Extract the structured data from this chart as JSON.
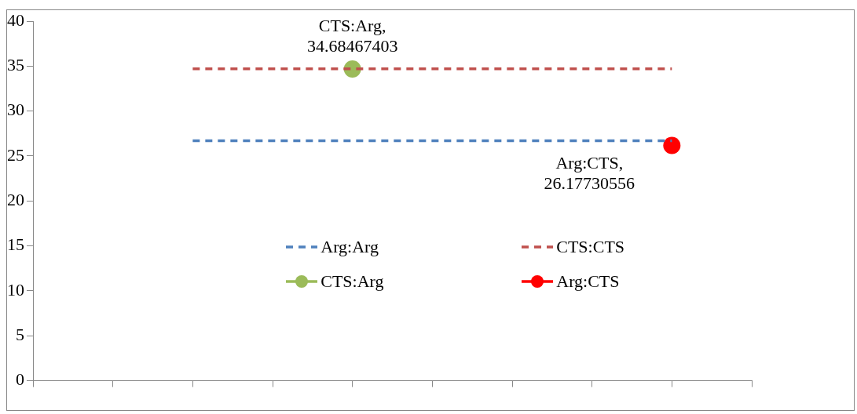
{
  "chart_data": {
    "type": "line",
    "categories": [
      null,
      null,
      null,
      null,
      null,
      null,
      null,
      null,
      null,
      null
    ],
    "series": [
      {
        "name": "Arg:Arg",
        "color": "#4f81bd",
        "line_style": "dashed",
        "marker": "none",
        "values": [
          null,
          null,
          26.7,
          26.7,
          26.7,
          26.7,
          26.7,
          26.7,
          26.7,
          null
        ]
      },
      {
        "name": "CTS:CTS",
        "color": "#c0504d",
        "line_style": "dashed",
        "marker": "none",
        "values": [
          null,
          null,
          34.7,
          34.7,
          34.7,
          34.7,
          34.7,
          34.7,
          34.7,
          null
        ]
      },
      {
        "name": "CTS:Arg",
        "color": "#9bbb59",
        "marker": "circle",
        "values": [
          null,
          null,
          null,
          null,
          34.68467403,
          null,
          null,
          null,
          null,
          null
        ],
        "value_labels": [
          null,
          null,
          null,
          null,
          "CTS:Arg,\n34.68467403",
          null,
          null,
          null,
          null,
          null
        ]
      },
      {
        "name": "Arg:CTS",
        "color": "#ff0000",
        "marker": "circle",
        "values": [
          null,
          null,
          null,
          null,
          null,
          null,
          null,
          null,
          26.17730556,
          null
        ],
        "value_labels": [
          null,
          null,
          null,
          null,
          null,
          null,
          null,
          null,
          "Arg:CTS,\n26.17730556",
          null
        ]
      }
    ],
    "ylim": [
      0,
      40
    ],
    "yticks": [
      0,
      5,
      10,
      15,
      20,
      25,
      30,
      35,
      40
    ],
    "grid": false,
    "legend": "center"
  }
}
